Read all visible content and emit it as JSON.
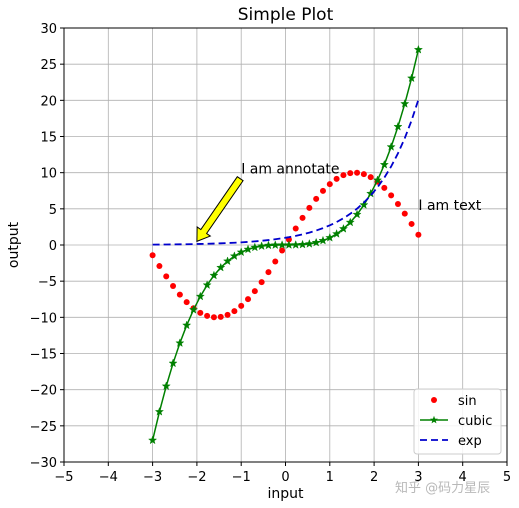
{
  "chart_data": {
    "type": "line",
    "title": "Simple Plot",
    "xlabel": "input",
    "ylabel": "output",
    "xlim": [
      -5,
      5
    ],
    "ylim": [
      -30,
      30
    ],
    "xticks": [
      -5,
      -4,
      -3,
      -2,
      -1,
      0,
      1,
      2,
      3,
      4,
      5
    ],
    "yticks": [
      -30,
      -25,
      -20,
      -15,
      -10,
      -5,
      0,
      5,
      10,
      15,
      20,
      25,
      30
    ],
    "grid": true,
    "legend_position": "lower-right",
    "series": [
      {
        "name": "sin",
        "style": "red circle markers",
        "color": "#ff0000",
        "function": "10*sin(x)",
        "x_range": [
          -3,
          3
        ],
        "points": 40
      },
      {
        "name": "cubic",
        "style": "green line with star markers",
        "color": "#008000",
        "function": "x^3",
        "x_range": [
          -3,
          3
        ],
        "points": 40
      },
      {
        "name": "exp",
        "style": "blue dashed line",
        "color": "#0000cc",
        "function": "exp(x)",
        "x_range": [
          -3,
          3
        ],
        "points": 40
      }
    ],
    "annotations": [
      {
        "text": "I am annotate",
        "xy": [
          -2,
          0.5
        ],
        "xytext": [
          -1,
          10
        ],
        "arrow_color": "#ffff00"
      },
      {
        "text": "I am text",
        "xy": [
          3,
          5
        ]
      }
    ]
  },
  "watermark": "知乎 @码力星辰"
}
